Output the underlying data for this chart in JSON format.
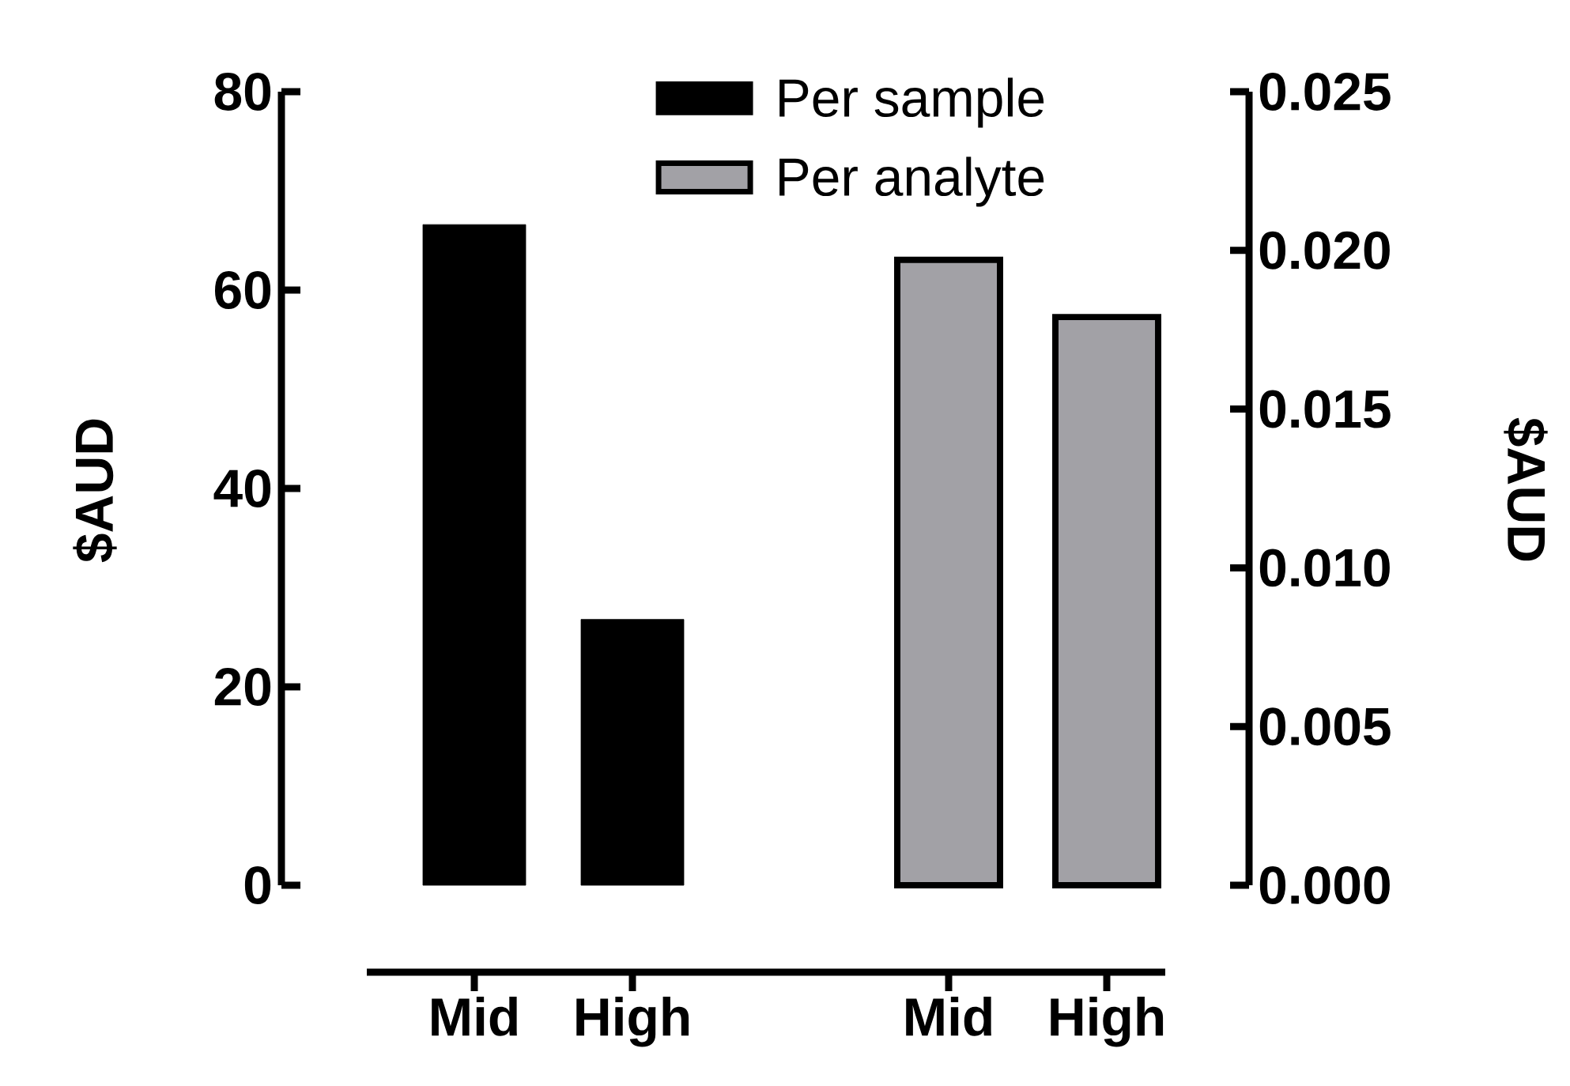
{
  "chart_data": {
    "type": "bar",
    "categories": [
      "Mid",
      "High",
      null,
      "Mid",
      "High"
    ],
    "series": [
      {
        "name": "Per sample",
        "color": "#000000",
        "values": [
          66.6,
          26.8,
          null,
          null,
          null
        ]
      },
      {
        "name": "Per analyte",
        "color": "#a2a1a6",
        "values": [
          null,
          null,
          null,
          0.0197,
          0.0179
        ],
        "axis": "y2"
      }
    ],
    "ylabel": "$AUD",
    "y2label": "$AUD",
    "ylim": [
      0,
      80
    ],
    "yticks": [
      0,
      20,
      40,
      60,
      80
    ],
    "y2lim": [
      0,
      0.025
    ],
    "y2ticks": [
      {
        "value": 0,
        "label": "0.000"
      },
      {
        "value": 0.005,
        "label": "0.005"
      },
      {
        "value": 0.01,
        "label": "0.010"
      },
      {
        "value": 0.015,
        "label": "0.015"
      },
      {
        "value": 0.02,
        "label": "0.020"
      },
      {
        "value": 0.025,
        "label": "0.025"
      }
    ],
    "legend": "top",
    "grid": false
  }
}
